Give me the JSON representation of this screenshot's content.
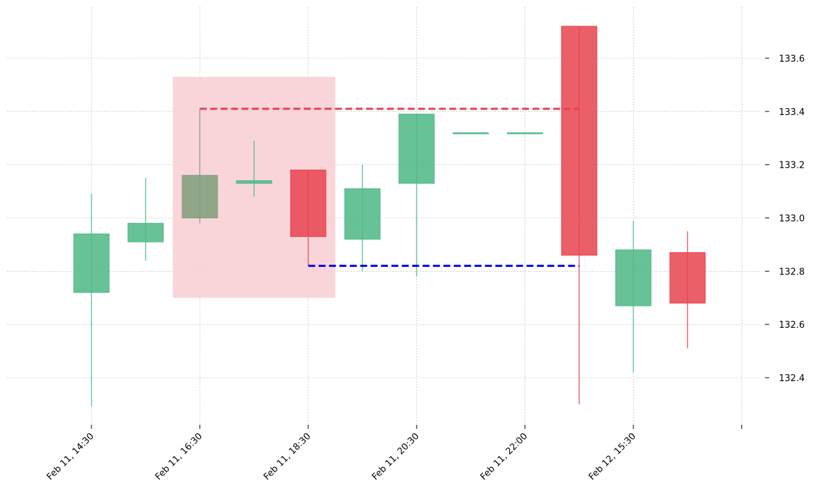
{
  "chart_data": {
    "type": "candlestick",
    "title": "",
    "xlabel": "",
    "ylabel": "",
    "ylim": [
      132.22,
      133.8
    ],
    "y_ticks": [
      132.4,
      132.6,
      132.8,
      133.0,
      133.2,
      133.4,
      133.6
    ],
    "y_tick_labels": [
      "132.4",
      "132.6",
      "132.8",
      "133.0",
      "133.2",
      "133.4",
      "133.6"
    ],
    "x_tick_labels": [
      {
        "index": 0,
        "label": "Feb 11, 14:30"
      },
      {
        "index": 2,
        "label": "Feb 11, 16:30"
      },
      {
        "index": 4,
        "label": "Feb 11, 18:30"
      },
      {
        "index": 6,
        "label": "Feb 11, 20:30"
      },
      {
        "index": 8,
        "label": "Feb 11, 22:00"
      },
      {
        "index": 10,
        "label": "Feb 12, 15:30"
      },
      {
        "index": 12,
        "label": ""
      }
    ],
    "candles": [
      {
        "open": 132.72,
        "high": 133.09,
        "low": 132.29,
        "close": 132.94
      },
      {
        "open": 132.91,
        "high": 133.15,
        "low": 132.84,
        "close": 132.98
      },
      {
        "open": 133.0,
        "high": 133.41,
        "low": 132.98,
        "close": 133.16
      },
      {
        "open": 133.13,
        "high": 133.29,
        "low": 133.08,
        "close": 133.14
      },
      {
        "open": 133.18,
        "high": 133.18,
        "low": 132.82,
        "close": 132.93
      },
      {
        "open": 132.92,
        "high": 133.2,
        "low": 132.8,
        "close": 133.11
      },
      {
        "open": 133.13,
        "high": 133.39,
        "low": 132.78,
        "close": 133.39
      },
      {
        "open": 133.32,
        "high": 133.32,
        "low": 133.32,
        "close": 133.32
      },
      {
        "open": 133.32,
        "high": 133.32,
        "low": 133.32,
        "close": 133.32
      },
      {
        "open": 133.72,
        "high": 133.72,
        "low": 132.3,
        "close": 132.86
      },
      {
        "open": 132.67,
        "high": 132.99,
        "low": 132.42,
        "close": 132.88
      },
      {
        "open": 132.87,
        "high": 132.95,
        "low": 132.51,
        "close": 132.68
      }
    ],
    "highlight_region": {
      "x_start": 1.5,
      "x_end": 4.5,
      "y_low": 132.7,
      "y_high": 133.53,
      "color": "#f8d0d5"
    },
    "highlighted_candles": [
      2
    ],
    "resistance_line": {
      "x_start": 2,
      "x_end": 9,
      "y": 133.41,
      "color": "#e0405a"
    },
    "support_line": {
      "x_start": 4,
      "x_end": 9,
      "y": 132.82,
      "color": "#0000ee"
    },
    "grid": true,
    "colors": {
      "up": "#4cb985",
      "down": "#e8434f",
      "highlight_candle": "#7f9d7a",
      "grid": "#b0b0b0",
      "axis_text": "#000000"
    }
  }
}
